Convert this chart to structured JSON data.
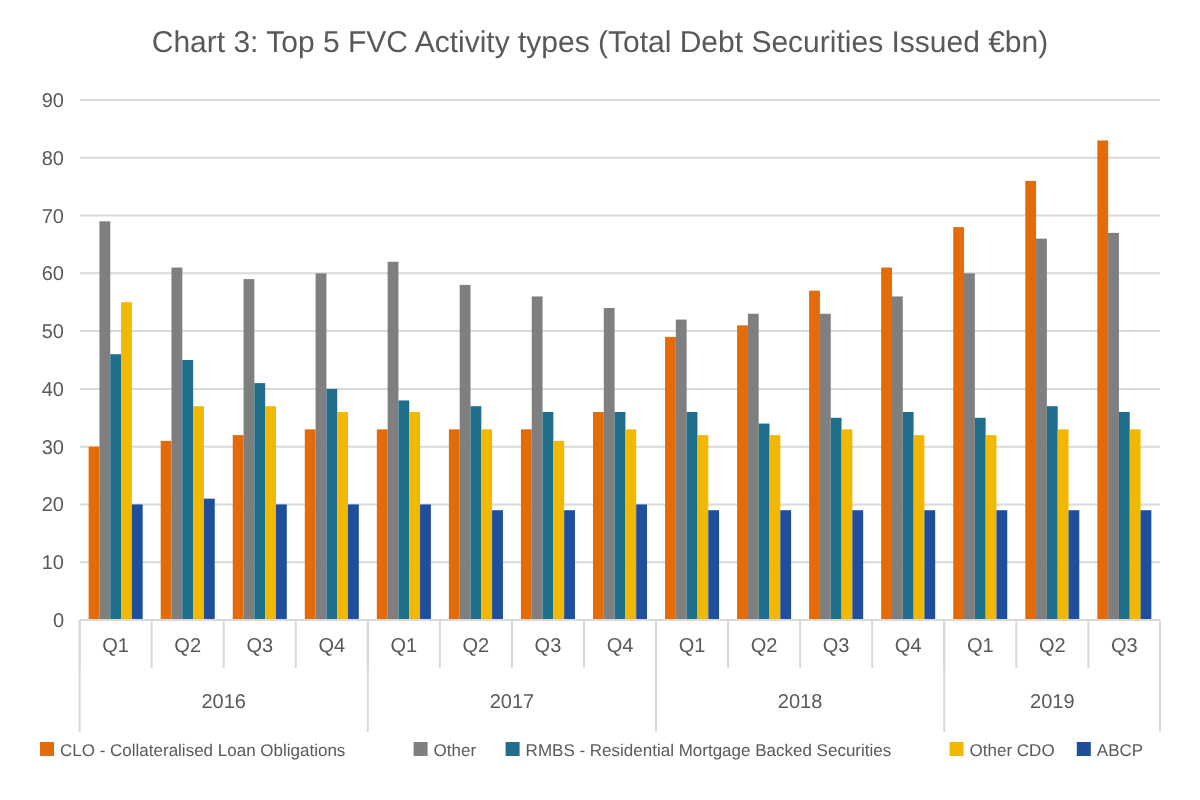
{
  "chart_data": {
    "type": "bar",
    "title": "Chart 3: Top 5 FVC Activity types (Total Debt Securities Issued €bn)",
    "categories": [
      "Q1",
      "Q2",
      "Q3",
      "Q4",
      "Q1",
      "Q2",
      "Q3",
      "Q4",
      "Q1",
      "Q2",
      "Q3",
      "Q4",
      "Q1",
      "Q2",
      "Q3"
    ],
    "annotations": [
      "2016",
      "2017",
      "2018",
      "2019"
    ],
    "series": [
      {
        "name": "CLO - Collateralised Loan Obligations",
        "color": "#e36c09",
        "values": [
          30,
          31,
          32,
          33,
          33,
          33,
          33,
          36,
          49,
          51,
          57,
          61,
          68,
          76,
          83
        ]
      },
      {
        "name": "Other",
        "color": "#7f7f7f",
        "values": [
          69,
          61,
          59,
          60,
          62,
          58,
          56,
          54,
          52,
          53,
          53,
          56,
          60,
          66,
          67
        ]
      },
      {
        "name": "RMBS - Residential Mortgage Backed Securities",
        "color": "#1f6e8c",
        "values": [
          46,
          45,
          41,
          40,
          38,
          37,
          36,
          36,
          36,
          34,
          35,
          36,
          35,
          37,
          36
        ]
      },
      {
        "name": "Other CDO",
        "color": "#f2b800",
        "values": [
          55,
          37,
          37,
          36,
          36,
          33,
          31,
          33,
          32,
          32,
          33,
          32,
          32,
          33,
          33
        ]
      },
      {
        "name": "ABCP",
        "color": "#1f4e9c",
        "values": [
          20,
          21,
          20,
          20,
          20,
          19,
          19,
          20,
          19,
          19,
          19,
          19,
          19,
          19,
          19
        ]
      }
    ],
    "ylim": [
      0,
      90
    ],
    "yticks": [
      0,
      10,
      20,
      30,
      40,
      50,
      60,
      70,
      80,
      90
    ],
    "grid": "y",
    "legend": "bottom"
  }
}
